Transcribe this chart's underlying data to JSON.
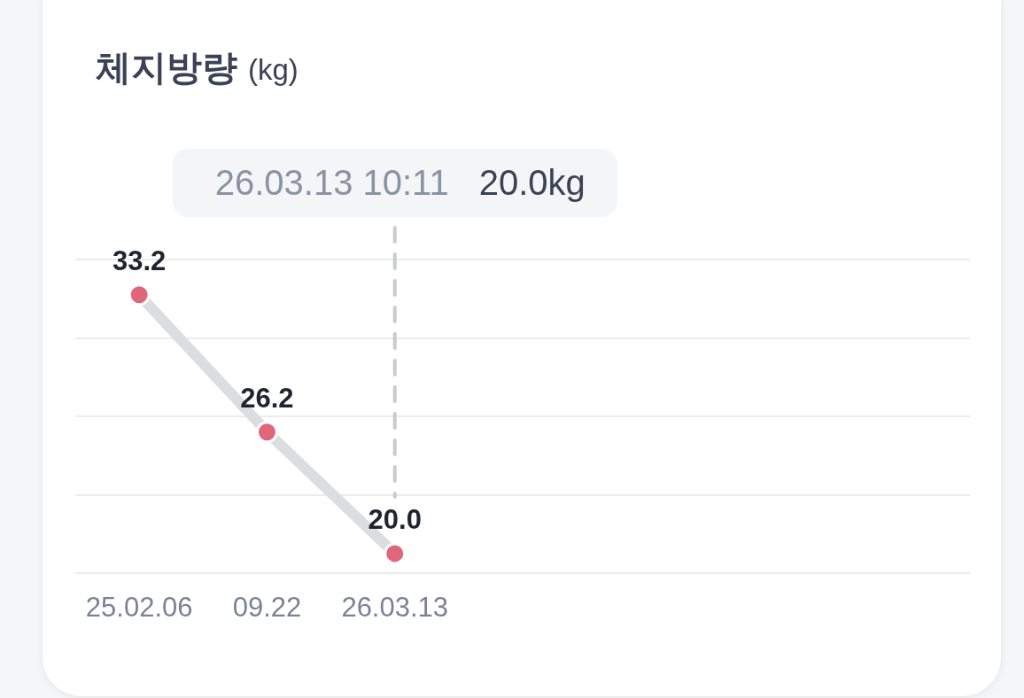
{
  "chart_data": {
    "type": "line",
    "title": "체지방량",
    "subtitle": "(kg)",
    "categories": [
      "25.02.06",
      "09.22",
      "26.03.13",
      null,
      null,
      null,
      null
    ],
    "series": [
      {
        "color": "#dcdde1",
        "colors": [
          "#e0667a",
          "#e0667a",
          "#e0667a",
          null,
          null,
          null,
          null
        ],
        "values": [
          33.2,
          26.2,
          20.0,
          null,
          null,
          null,
          null
        ],
        "value_labels": [
          "33.2",
          "26.2",
          "20.0",
          null,
          null,
          null,
          null
        ]
      }
    ],
    "ylim": [
      19,
      35
    ],
    "yticks": [
      {
        "value": 19,
        "label": null
      },
      {
        "value": 23,
        "label": null
      },
      {
        "value": 27,
        "label": null
      },
      {
        "value": 31,
        "label": null
      },
      {
        "value": 35,
        "label": null
      }
    ],
    "grid": "y",
    "tick_labels": "x",
    "marker": "circle",
    "line_style": "solid",
    "ref_lines": [
      {
        "axis": "x",
        "value": "26.03.13",
        "color": "#c9cbd0",
        "line_style": "dashed"
      }
    ],
    "annotations": [
      "26.03.13 10:11",
      "20.0kg"
    ]
  }
}
